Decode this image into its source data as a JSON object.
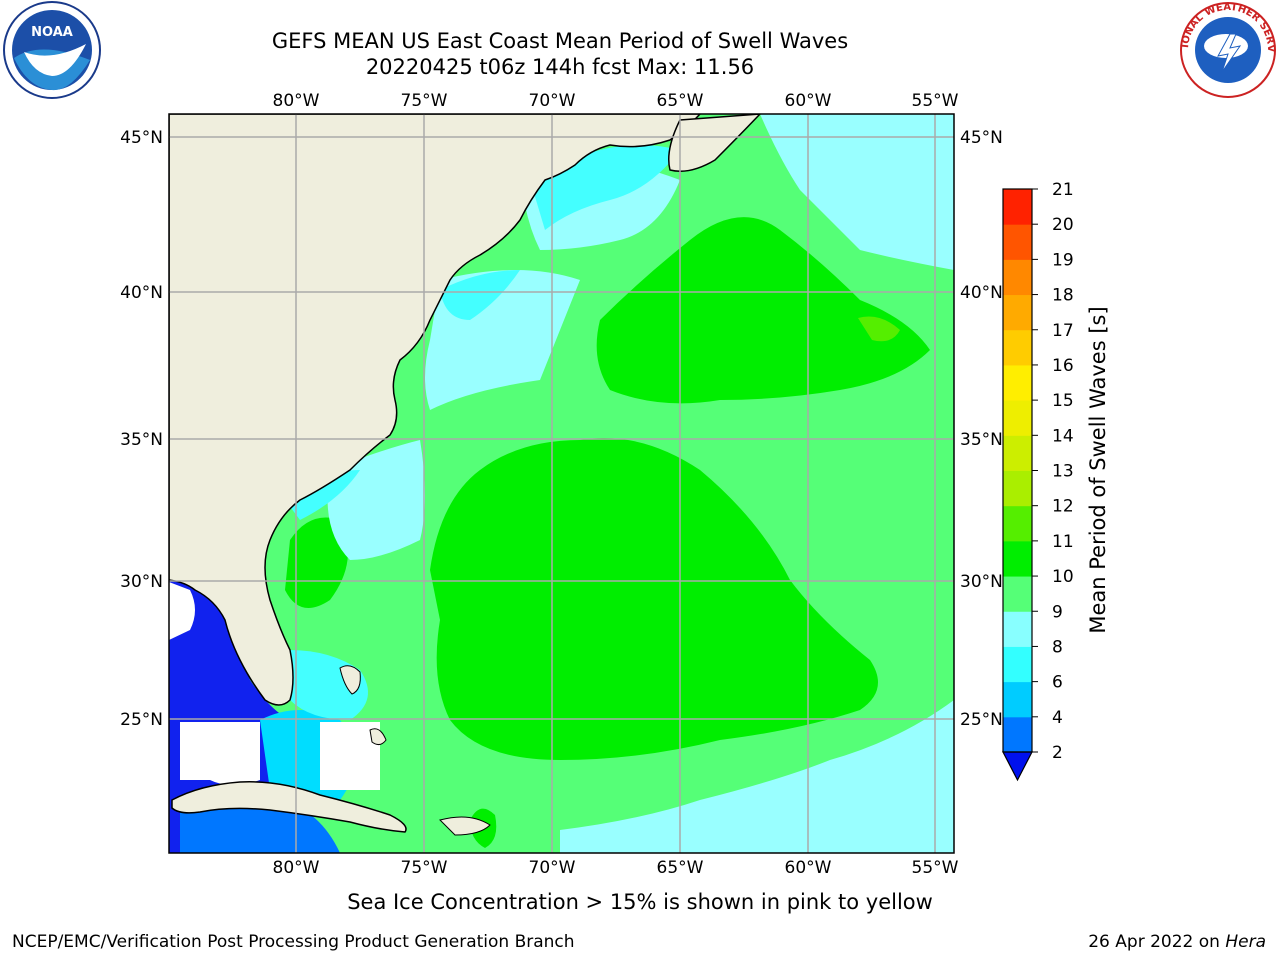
{
  "title": {
    "line1": "GEFS MEAN US East Coast Mean Period of Swell Waves",
    "line2": "20220425 t06z 144h fcst   Max: 11.56"
  },
  "map": {
    "lon_labels": [
      "80°W",
      "75°W",
      "70°W",
      "65°W",
      "60°W",
      "55°W"
    ],
    "lat_labels": [
      "45°N",
      "40°N",
      "35°N",
      "30°N",
      "25°N"
    ],
    "colors": {
      "land": "#efeedd",
      "ocean_9_10": "#55ff77",
      "ocean_10_11": "#00ee00",
      "ocean_8_9": "#99ffff",
      "ocean_6_8": "#44ffff",
      "ocean_4_6": "#00ddff",
      "ocean_2_4": "#0077ff",
      "ocean_lt2": "#1122ee",
      "grid": "#aaaaaa"
    }
  },
  "colorbar": {
    "label": "Mean Period of Swell Waves [s]",
    "ticks": [
      "2",
      "4",
      "6",
      "8",
      "9",
      "10",
      "11",
      "12",
      "13",
      "14",
      "15",
      "16",
      "17",
      "18",
      "19",
      "20",
      "21"
    ],
    "colors": [
      "#0077ff",
      "#00ccff",
      "#33ffff",
      "#88ffff",
      "#55ff77",
      "#00ee00",
      "#55ee00",
      "#aaee00",
      "#ccee00",
      "#eeee00",
      "#ffee00",
      "#ffcc00",
      "#ffaa00",
      "#ff8800",
      "#ff5500",
      "#ff2200"
    ],
    "extend_color": "#0011ee"
  },
  "caption": "Sea Ice Concentration > 15% is shown in pink to yellow",
  "footer": {
    "left": "NCEP/EMC/Verification Post Processing Product Generation Branch",
    "right_prefix": "26 Apr 2022 on ",
    "right_host": "Hera"
  },
  "logos": {
    "noaa": "NOAA",
    "nws": "NATIONAL WEATHER SERVICE"
  }
}
